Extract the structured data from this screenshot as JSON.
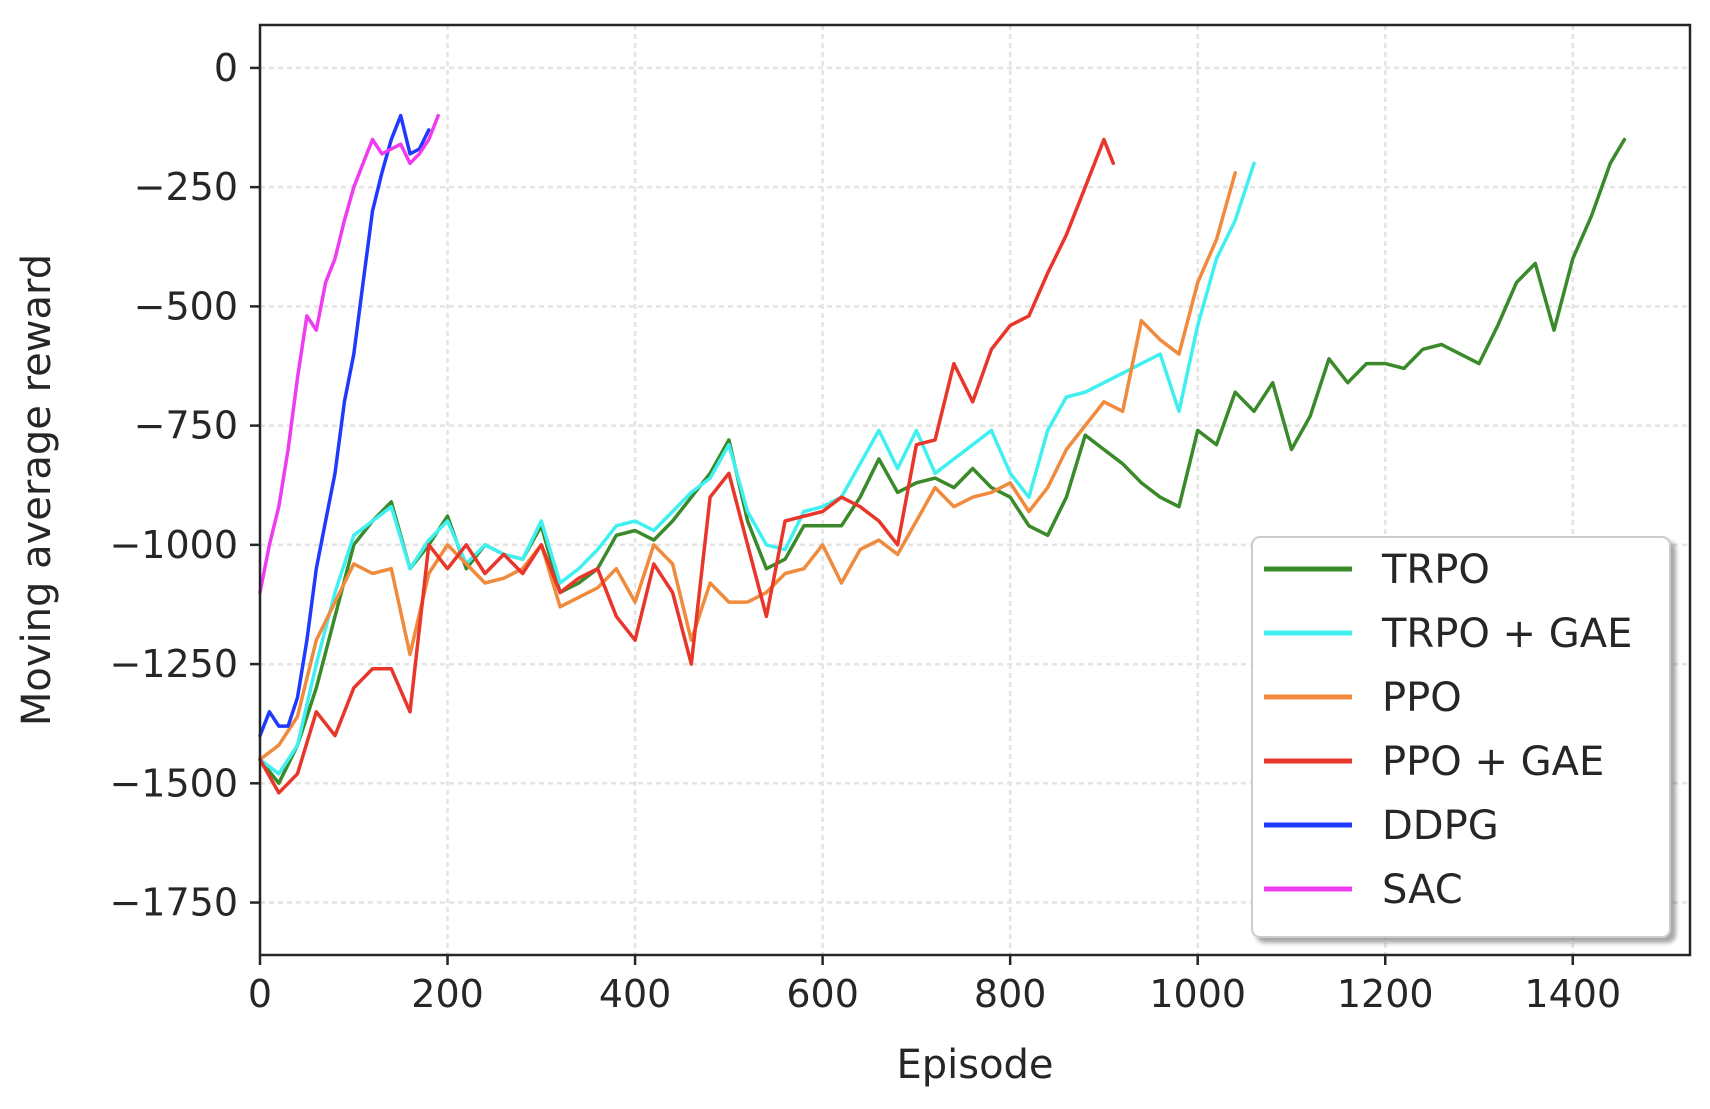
{
  "chart_data": {
    "type": "line",
    "title": "",
    "xlabel": "Episode",
    "ylabel": "Moving average reward",
    "xlim": [
      0,
      1525
    ],
    "ylim": [
      -1860,
      90
    ],
    "xticks": [
      0,
      200,
      400,
      600,
      800,
      1000,
      1200,
      1400
    ],
    "yticks": [
      0,
      -250,
      -500,
      -750,
      -1000,
      -1250,
      -1500,
      -1750
    ],
    "grid": true,
    "legend": "lower right",
    "series": [
      {
        "name": "TRPO",
        "color": "#3a8a2a",
        "x": [
          0,
          20,
          40,
          60,
          80,
          100,
          120,
          140,
          160,
          180,
          200,
          220,
          240,
          260,
          280,
          300,
          320,
          340,
          360,
          380,
          400,
          420,
          440,
          460,
          480,
          500,
          520,
          540,
          560,
          580,
          600,
          620,
          640,
          660,
          680,
          700,
          720,
          740,
          760,
          780,
          800,
          820,
          840,
          860,
          880,
          900,
          920,
          940,
          960,
          980,
          1000,
          1020,
          1040,
          1060,
          1080,
          1100,
          1120,
          1140,
          1160,
          1180,
          1200,
          1220,
          1240,
          1260,
          1280,
          1300,
          1320,
          1340,
          1360,
          1380,
          1400,
          1420,
          1440,
          1455
        ],
        "values": [
          -1450,
          -1500,
          -1420,
          -1300,
          -1150,
          -1000,
          -950,
          -910,
          -1050,
          -1000,
          -940,
          -1050,
          -1000,
          -1020,
          -1030,
          -960,
          -1100,
          -1080,
          -1050,
          -980,
          -970,
          -990,
          -950,
          -900,
          -850,
          -780,
          -950,
          -1050,
          -1030,
          -960,
          -960,
          -960,
          -900,
          -820,
          -890,
          -870,
          -860,
          -880,
          -840,
          -880,
          -900,
          -960,
          -980,
          -900,
          -770,
          -800,
          -830,
          -870,
          -900,
          -920,
          -760,
          -790,
          -680,
          -720,
          -660,
          -800,
          -730,
          -610,
          -660,
          -620,
          -620,
          -630,
          -590,
          -580,
          -600,
          -620,
          -540,
          -450,
          -410,
          -550,
          -400,
          -310,
          -200,
          -150
        ]
      },
      {
        "name": "TRPO + GAE",
        "color": "#40f0f0",
        "x": [
          0,
          20,
          40,
          60,
          80,
          100,
          120,
          140,
          160,
          180,
          200,
          220,
          240,
          260,
          280,
          300,
          320,
          340,
          360,
          380,
          400,
          420,
          440,
          460,
          480,
          500,
          520,
          540,
          560,
          580,
          600,
          620,
          640,
          660,
          680,
          700,
          720,
          740,
          760,
          780,
          800,
          820,
          840,
          860,
          880,
          900,
          920,
          940,
          960,
          980,
          1000,
          1020,
          1040,
          1060
        ],
        "values": [
          -1450,
          -1480,
          -1420,
          -1250,
          -1100,
          -980,
          -950,
          -920,
          -1050,
          -990,
          -950,
          -1040,
          -1000,
          -1020,
          -1030,
          -950,
          -1080,
          -1050,
          -1010,
          -960,
          -950,
          -970,
          -930,
          -890,
          -860,
          -790,
          -930,
          -1000,
          -1010,
          -930,
          -920,
          -900,
          -830,
          -760,
          -840,
          -760,
          -850,
          -820,
          -790,
          -760,
          -850,
          -900,
          -760,
          -690,
          -680,
          -660,
          -640,
          -620,
          -600,
          -720,
          -540,
          -400,
          -320,
          -200
        ]
      },
      {
        "name": "PPO",
        "color": "#f08a3c",
        "x": [
          0,
          20,
          40,
          60,
          80,
          100,
          120,
          140,
          160,
          180,
          200,
          220,
          240,
          260,
          280,
          300,
          320,
          340,
          360,
          380,
          400,
          420,
          440,
          460,
          480,
          500,
          520,
          540,
          560,
          580,
          600,
          620,
          640,
          660,
          680,
          700,
          720,
          740,
          760,
          780,
          800,
          820,
          840,
          860,
          880,
          900,
          920,
          940,
          960,
          980,
          1000,
          1020,
          1040
        ],
        "values": [
          -1450,
          -1420,
          -1360,
          -1200,
          -1120,
          -1040,
          -1060,
          -1050,
          -1230,
          -1060,
          -1000,
          -1040,
          -1080,
          -1070,
          -1050,
          -1000,
          -1130,
          -1110,
          -1090,
          -1050,
          -1120,
          -1000,
          -1040,
          -1200,
          -1080,
          -1120,
          -1120,
          -1100,
          -1060,
          -1050,
          -1000,
          -1080,
          -1010,
          -990,
          -1020,
          -950,
          -880,
          -920,
          -900,
          -890,
          -870,
          -930,
          -880,
          -800,
          -750,
          -700,
          -720,
          -530,
          -570,
          -600,
          -450,
          -360,
          -220
        ]
      },
      {
        "name": "PPO + GAE",
        "color": "#e8362a",
        "x": [
          0,
          20,
          40,
          60,
          80,
          100,
          120,
          140,
          160,
          180,
          200,
          220,
          240,
          260,
          280,
          300,
          320,
          340,
          360,
          380,
          400,
          420,
          440,
          460,
          480,
          500,
          520,
          540,
          560,
          580,
          600,
          620,
          640,
          660,
          680,
          700,
          720,
          740,
          760,
          780,
          800,
          820,
          840,
          860,
          880,
          900,
          910
        ],
        "values": [
          -1450,
          -1520,
          -1480,
          -1350,
          -1400,
          -1300,
          -1260,
          -1260,
          -1350,
          -1000,
          -1050,
          -1000,
          -1060,
          -1020,
          -1060,
          -1000,
          -1100,
          -1070,
          -1050,
          -1150,
          -1200,
          -1040,
          -1100,
          -1250,
          -900,
          -850,
          -1000,
          -1150,
          -950,
          -940,
          -930,
          -900,
          -920,
          -950,
          -1000,
          -790,
          -780,
          -620,
          -700,
          -590,
          -540,
          -520,
          -430,
          -350,
          -250,
          -150,
          -200
        ]
      },
      {
        "name": "DDPG",
        "color": "#1f3aff",
        "x": [
          0,
          10,
          20,
          30,
          40,
          50,
          60,
          70,
          80,
          90,
          100,
          110,
          120,
          130,
          140,
          150,
          160,
          170,
          180
        ],
        "values": [
          -1400,
          -1350,
          -1380,
          -1380,
          -1320,
          -1200,
          -1050,
          -950,
          -850,
          -700,
          -600,
          -450,
          -300,
          -220,
          -150,
          -100,
          -180,
          -170,
          -130
        ]
      },
      {
        "name": "SAC",
        "color": "#f03cf0",
        "x": [
          0,
          10,
          20,
          30,
          40,
          50,
          60,
          70,
          80,
          90,
          100,
          110,
          120,
          130,
          140,
          150,
          160,
          170,
          180,
          190
        ],
        "values": [
          -1100,
          -1000,
          -920,
          -800,
          -650,
          -520,
          -550,
          -450,
          -400,
          -320,
          -250,
          -200,
          -150,
          -180,
          -170,
          -160,
          -200,
          -180,
          -150,
          -100
        ]
      }
    ]
  }
}
